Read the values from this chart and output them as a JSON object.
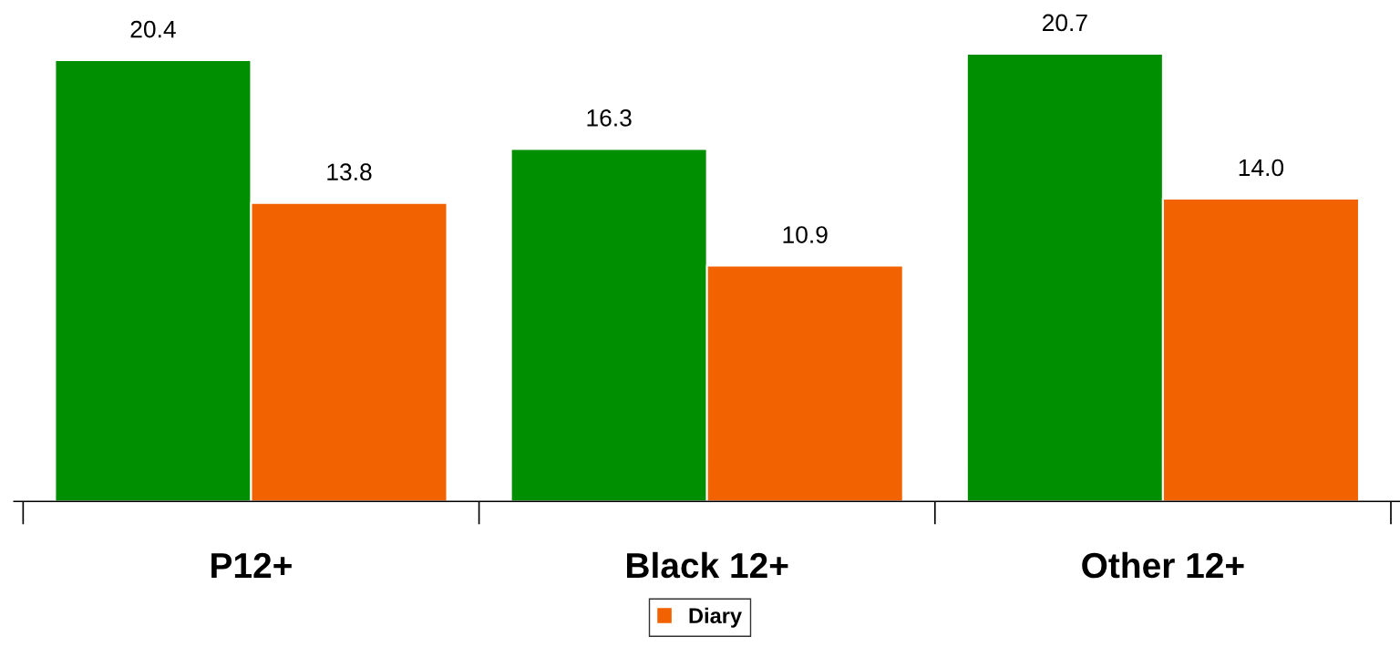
{
  "chart_data": {
    "type": "bar",
    "categories": [
      "P12+",
      "Black 12+",
      "Other 12+"
    ],
    "series": [
      {
        "color": "#008f00",
        "values": [
          20.4,
          16.3,
          20.7
        ],
        "value_labels": [
          "20.4",
          "16.3",
          "20.7"
        ]
      },
      {
        "name": "Diary",
        "color": "#f26200",
        "values": [
          13.8,
          10.9,
          14.0
        ],
        "value_labels": [
          "13.8",
          "10.9",
          "14.0"
        ]
      }
    ],
    "legend": "bottom",
    "grid": false
  }
}
